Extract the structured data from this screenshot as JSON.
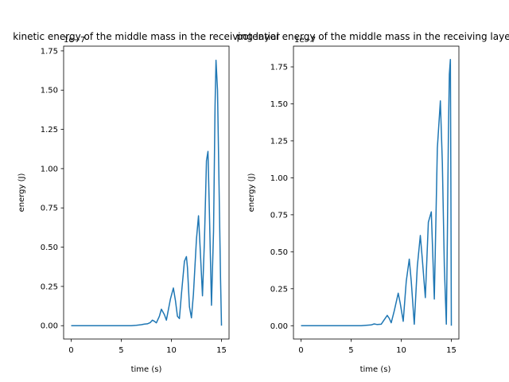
{
  "colors": {
    "series": "#1f77b4",
    "axes": "#000000",
    "background": "#ffffff"
  },
  "chart_data": [
    {
      "type": "line",
      "title": "kinetic energy of the middle mass in the receiving layer",
      "xlabel": "time (s)",
      "ylabel": "energy (J)",
      "xlim": [
        -0.75,
        15.75
      ],
      "ylim": [
        -0.085,
        1.78
      ],
      "y_offset_text": "1e−7",
      "xticks": [
        0,
        5,
        10,
        15
      ],
      "xtick_labels": [
        "0",
        "5",
        "10",
        "15"
      ],
      "yticks": [
        0.0,
        0.25,
        0.5,
        0.75,
        1.0,
        1.25,
        1.5,
        1.75
      ],
      "ytick_labels": [
        "0.00",
        "0.25",
        "0.50",
        "0.75",
        "1.00",
        "1.25",
        "1.50",
        "1.75"
      ],
      "grid": false,
      "series": [
        {
          "x": [
            0,
            1,
            2,
            3,
            4,
            5,
            6,
            6.5,
            7,
            7.3,
            7.6,
            7.9,
            8.1,
            8.3,
            8.5,
            8.8,
            9.0,
            9.3,
            9.5,
            9.9,
            10.2,
            10.4,
            10.6,
            10.8,
            11.0,
            11.3,
            11.5,
            11.6,
            11.8,
            12.0,
            12.2,
            12.5,
            12.7,
            12.9,
            13.1,
            13.3,
            13.5,
            13.65,
            13.8,
            14.0,
            14.2,
            14.35,
            14.45,
            14.6,
            14.75,
            14.9,
            15.0
          ],
          "y": [
            0,
            0,
            0,
            0,
            0,
            0,
            0,
            0.002,
            0.006,
            0.01,
            0.012,
            0.02,
            0.035,
            0.028,
            0.018,
            0.06,
            0.105,
            0.07,
            0.035,
            0.17,
            0.24,
            0.16,
            0.06,
            0.045,
            0.2,
            0.41,
            0.44,
            0.37,
            0.12,
            0.05,
            0.2,
            0.55,
            0.7,
            0.45,
            0.19,
            0.55,
            1.05,
            1.11,
            0.7,
            0.13,
            0.6,
            1.4,
            1.69,
            1.5,
            0.9,
            0.3,
            0.0
          ]
        }
      ]
    },
    {
      "type": "line",
      "title": "potential energy of the middle mass in the receiving layer",
      "xlabel": "time (s)",
      "ylabel": "energy (J)",
      "xlim": [
        -0.75,
        15.75
      ],
      "ylim": [
        -0.09,
        1.89
      ],
      "y_offset_text": "1e−7",
      "xticks": [
        0,
        5,
        10,
        15
      ],
      "xtick_labels": [
        "0",
        "5",
        "10",
        "15"
      ],
      "yticks": [
        0.0,
        0.25,
        0.5,
        0.75,
        1.0,
        1.25,
        1.5,
        1.75
      ],
      "ytick_labels": [
        "0.00",
        "0.25",
        "0.50",
        "0.75",
        "1.00",
        "1.25",
        "1.50",
        "1.75"
      ],
      "grid": false,
      "series": [
        {
          "x": [
            0,
            1,
            2,
            3,
            4,
            5,
            6,
            7.0,
            7.3,
            7.6,
            8.0,
            8.3,
            8.6,
            8.8,
            9.0,
            9.3,
            9.7,
            9.9,
            10.2,
            10.5,
            10.8,
            11.0,
            11.3,
            11.6,
            11.9,
            12.1,
            12.4,
            12.7,
            13.0,
            13.3,
            13.6,
            13.9,
            14.1,
            14.3,
            14.5,
            14.6,
            14.7,
            14.8,
            14.9,
            14.95,
            15.0
          ],
          "y": [
            0,
            0,
            0,
            0,
            0,
            0,
            0,
            0.005,
            0.012,
            0.008,
            0.01,
            0.04,
            0.07,
            0.05,
            0.02,
            0.1,
            0.22,
            0.15,
            0.03,
            0.3,
            0.45,
            0.3,
            0.01,
            0.4,
            0.61,
            0.45,
            0.19,
            0.7,
            0.77,
            0.18,
            1.2,
            1.52,
            1.1,
            0.4,
            0.01,
            0.6,
            1.3,
            1.7,
            1.8,
            1.0,
            0.0
          ]
        }
      ]
    }
  ]
}
